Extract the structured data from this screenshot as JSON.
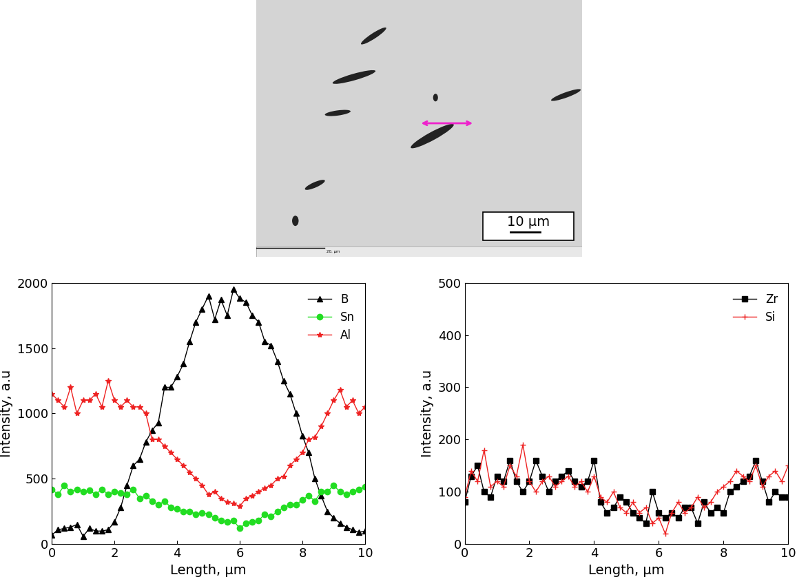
{
  "image": {
    "scale_bar": "10 μm",
    "footer": "20. μm"
  },
  "chart_data": [
    {
      "type": "line",
      "xlabel": "Length, μm",
      "ylabel": "Intensity, a.u",
      "xlim": [
        0,
        10
      ],
      "xticks": [
        0,
        2,
        4,
        6,
        8,
        10
      ],
      "ylim": [
        0,
        2000
      ],
      "yticks": [
        0,
        500,
        1000,
        1500,
        2000
      ],
      "legend": "upper right",
      "x": [
        0,
        0.2,
        0.4,
        0.6,
        0.8,
        1.0,
        1.2,
        1.4,
        1.6,
        1.8,
        2.0,
        2.2,
        2.4,
        2.6,
        2.8,
        3.0,
        3.2,
        3.4,
        3.6,
        3.8,
        4.0,
        4.2,
        4.4,
        4.6,
        4.8,
        5.0,
        5.2,
        5.4,
        5.6,
        5.8,
        6.0,
        6.2,
        6.4,
        6.6,
        6.8,
        7.0,
        7.2,
        7.4,
        7.6,
        7.8,
        8.0,
        8.2,
        8.4,
        8.6,
        8.8,
        9.0,
        9.2,
        9.4,
        9.6,
        9.8,
        10.0
      ],
      "series": [
        {
          "name": "B",
          "color": "#000000",
          "marker": "triangle",
          "values": [
            70,
            110,
            120,
            130,
            150,
            60,
            120,
            100,
            100,
            110,
            170,
            280,
            450,
            600,
            650,
            780,
            870,
            930,
            1200,
            1200,
            1280,
            1380,
            1550,
            1700,
            1800,
            1900,
            1720,
            1870,
            1750,
            1950,
            1880,
            1850,
            1750,
            1700,
            1550,
            1520,
            1400,
            1250,
            1150,
            1000,
            830,
            700,
            500,
            370,
            250,
            200,
            160,
            130,
            110,
            90,
            100
          ]
        },
        {
          "name": "Sn",
          "color": "#22dd22",
          "marker": "circle",
          "values": [
            420,
            380,
            450,
            400,
            420,
            400,
            410,
            380,
            420,
            380,
            400,
            390,
            380,
            420,
            350,
            370,
            330,
            300,
            330,
            280,
            270,
            250,
            250,
            230,
            240,
            230,
            200,
            180,
            170,
            180,
            120,
            160,
            170,
            180,
            230,
            210,
            250,
            280,
            300,
            300,
            340,
            370,
            330,
            400,
            400,
            450,
            400,
            380,
            400,
            420,
            440
          ]
        },
        {
          "name": "Al",
          "color": "#ee2222",
          "marker": "star",
          "values": [
            1150,
            1100,
            1050,
            1200,
            1000,
            1100,
            1100,
            1150,
            1050,
            1250,
            1100,
            1050,
            1100,
            1050,
            1050,
            1000,
            800,
            800,
            750,
            700,
            650,
            600,
            550,
            500,
            450,
            380,
            400,
            350,
            320,
            310,
            290,
            350,
            370,
            400,
            430,
            450,
            500,
            520,
            600,
            650,
            700,
            800,
            820,
            900,
            1000,
            1100,
            1180,
            1050,
            1100,
            1000,
            1050
          ]
        }
      ]
    },
    {
      "type": "line",
      "xlabel": "Length, μm",
      "ylabel": "Intensity, a.u",
      "xlim": [
        0,
        10
      ],
      "xticks": [
        0,
        2,
        4,
        6,
        8,
        10
      ],
      "ylim": [
        0,
        500
      ],
      "yticks": [
        0,
        100,
        200,
        300,
        400,
        500
      ],
      "legend": "upper right",
      "x": [
        0,
        0.2,
        0.4,
        0.6,
        0.8,
        1.0,
        1.2,
        1.4,
        1.6,
        1.8,
        2.0,
        2.2,
        2.4,
        2.6,
        2.8,
        3.0,
        3.2,
        3.4,
        3.6,
        3.8,
        4.0,
        4.2,
        4.4,
        4.6,
        4.8,
        5.0,
        5.2,
        5.4,
        5.6,
        5.8,
        6.0,
        6.2,
        6.4,
        6.6,
        6.8,
        7.0,
        7.2,
        7.4,
        7.6,
        7.8,
        8.0,
        8.2,
        8.4,
        8.6,
        8.8,
        9.0,
        9.2,
        9.4,
        9.6,
        9.8,
        10.0
      ],
      "series": [
        {
          "name": "Zr",
          "color": "#000000",
          "marker": "square",
          "values": [
            80,
            130,
            150,
            100,
            90,
            130,
            120,
            160,
            120,
            100,
            120,
            160,
            130,
            100,
            120,
            130,
            140,
            120,
            110,
            120,
            160,
            80,
            60,
            70,
            90,
            80,
            60,
            50,
            40,
            100,
            60,
            50,
            60,
            50,
            70,
            70,
            40,
            80,
            60,
            70,
            60,
            100,
            110,
            120,
            130,
            160,
            120,
            80,
            100,
            90,
            90
          ]
        },
        {
          "name": "Si",
          "color": "#ee2222",
          "marker": "plus",
          "values": [
            90,
            140,
            120,
            180,
            110,
            120,
            110,
            150,
            130,
            190,
            120,
            100,
            120,
            130,
            110,
            120,
            130,
            110,
            120,
            100,
            130,
            90,
            80,
            100,
            70,
            60,
            80,
            60,
            70,
            40,
            50,
            20,
            60,
            80,
            60,
            70,
            90,
            70,
            80,
            100,
            110,
            120,
            140,
            130,
            120,
            150,
            110,
            130,
            140,
            120,
            150
          ]
        }
      ]
    }
  ]
}
